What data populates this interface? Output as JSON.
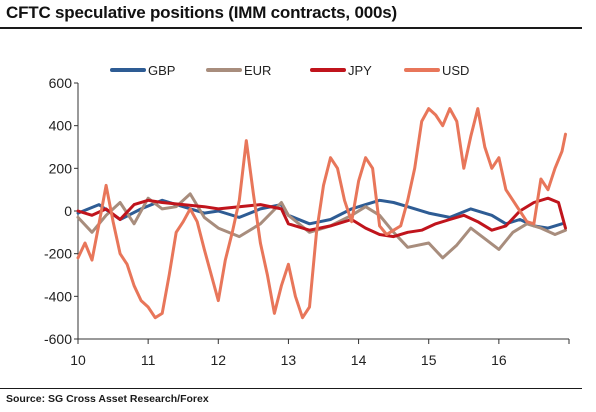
{
  "title": "CFTC speculative positions (IMM contracts, 000s)",
  "source": "Source: SG Cross Asset Research/Forex",
  "chart_data": {
    "type": "line",
    "title": "CFTC speculative positions (IMM contracts, 000s)",
    "xlabel": "",
    "ylabel": "",
    "xlim": [
      10,
      17
    ],
    "ylim": [
      -600,
      600
    ],
    "x_ticks": [
      "10",
      "11",
      "12",
      "13",
      "14",
      "15",
      "16"
    ],
    "y_ticks": [
      "600",
      "400",
      "200",
      "0",
      "-200",
      "-400",
      "-600"
    ],
    "legend_position": "top",
    "grid": false,
    "series": [
      {
        "name": "GBP",
        "color": "#2e5c94",
        "x": [
          10.0,
          10.3,
          10.6,
          10.9,
          11.2,
          11.5,
          11.8,
          12.0,
          12.3,
          12.6,
          12.9,
          13.0,
          13.3,
          13.6,
          13.9,
          14.1,
          14.3,
          14.5,
          14.7,
          15.0,
          15.3,
          15.6,
          15.9,
          16.1,
          16.3,
          16.5,
          16.7,
          16.9
        ],
        "values": [
          -10,
          30,
          -40,
          10,
          50,
          20,
          -10,
          0,
          -30,
          10,
          30,
          -20,
          -60,
          -40,
          10,
          30,
          50,
          40,
          20,
          -10,
          -30,
          10,
          -20,
          -60,
          -40,
          -70,
          -80,
          -60
        ]
      },
      {
        "name": "EUR",
        "color": "#a88d7d",
        "x": [
          10.0,
          10.2,
          10.4,
          10.6,
          10.8,
          11.0,
          11.2,
          11.4,
          11.6,
          11.8,
          12.0,
          12.3,
          12.6,
          12.9,
          13.0,
          13.3,
          13.6,
          13.9,
          14.1,
          14.3,
          14.5,
          14.7,
          15.0,
          15.2,
          15.4,
          15.6,
          15.8,
          16.0,
          16.2,
          16.4,
          16.6,
          16.8,
          16.95
        ],
        "values": [
          -30,
          -100,
          -20,
          40,
          -60,
          60,
          10,
          20,
          80,
          -30,
          -80,
          -120,
          -60,
          40,
          -20,
          -100,
          -70,
          -20,
          20,
          -20,
          -100,
          -170,
          -150,
          -220,
          -160,
          -80,
          -130,
          -180,
          -100,
          -60,
          -80,
          -110,
          -90
        ]
      },
      {
        "name": "JPY",
        "color": "#c0141c",
        "x": [
          10.0,
          10.2,
          10.4,
          10.6,
          10.8,
          11.0,
          11.2,
          11.5,
          11.8,
          12.0,
          12.3,
          12.6,
          12.9,
          13.0,
          13.3,
          13.6,
          13.9,
          14.1,
          14.3,
          14.5,
          14.7,
          14.9,
          15.1,
          15.3,
          15.5,
          15.7,
          15.9,
          16.1,
          16.3,
          16.5,
          16.7,
          16.85,
          16.95
        ],
        "values": [
          0,
          -20,
          10,
          -40,
          30,
          50,
          40,
          30,
          20,
          10,
          20,
          30,
          10,
          -60,
          -90,
          -70,
          -40,
          -80,
          -110,
          -120,
          -100,
          -90,
          -60,
          -40,
          -20,
          -50,
          -90,
          -70,
          0,
          40,
          60,
          40,
          -80
        ]
      },
      {
        "name": "USD",
        "color": "#e8765a",
        "x": [
          10.0,
          10.1,
          10.2,
          10.3,
          10.4,
          10.5,
          10.6,
          10.7,
          10.8,
          10.9,
          11.0,
          11.1,
          11.2,
          11.3,
          11.4,
          11.5,
          11.6,
          11.7,
          11.8,
          11.9,
          12.0,
          12.1,
          12.2,
          12.3,
          12.4,
          12.5,
          12.6,
          12.7,
          12.8,
          12.9,
          13.0,
          13.1,
          13.2,
          13.3,
          13.4,
          13.5,
          13.6,
          13.7,
          13.8,
          13.9,
          14.0,
          14.1,
          14.2,
          14.3,
          14.4,
          14.5,
          14.6,
          14.7,
          14.8,
          14.9,
          15.0,
          15.1,
          15.2,
          15.3,
          15.4,
          15.5,
          15.6,
          15.7,
          15.8,
          15.9,
          16.0,
          16.1,
          16.2,
          16.3,
          16.4,
          16.5,
          16.6,
          16.7,
          16.8,
          16.9,
          16.95
        ],
        "values": [
          -220,
          -150,
          -230,
          -60,
          120,
          -50,
          -200,
          -250,
          -350,
          -420,
          -450,
          -500,
          -480,
          -300,
          -100,
          -50,
          10,
          -50,
          -180,
          -300,
          -420,
          -230,
          -100,
          50,
          330,
          80,
          -150,
          -300,
          -480,
          -350,
          -250,
          -400,
          -500,
          -450,
          -100,
          120,
          250,
          200,
          50,
          -50,
          140,
          250,
          200,
          -70,
          -110,
          -90,
          -70,
          50,
          200,
          420,
          480,
          450,
          400,
          480,
          420,
          200,
          350,
          480,
          300,
          200,
          250,
          100,
          50,
          0,
          -50,
          -60,
          150,
          100,
          200,
          280,
          360
        ]
      }
    ]
  }
}
